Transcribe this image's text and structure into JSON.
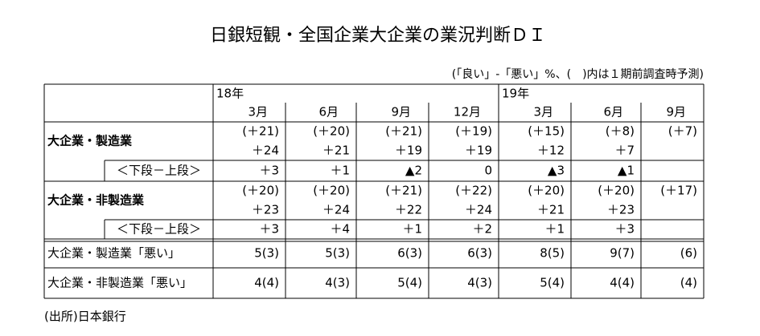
{
  "title": "日銀短観・全国企業大企業の業況判断ＤＩ",
  "note": "(「良い」-「悪い」%、(　)内は１期前調査時予測)",
  "table": {
    "header": {
      "years": [
        "18年",
        "19年"
      ],
      "months": [
        "3月",
        "6月",
        "9月",
        "12月",
        "3月",
        "6月",
        "9月"
      ]
    },
    "rows": [
      {
        "label": "大企業・製造業",
        "forecast": [
          "(＋21)",
          "(＋20)",
          "(＋21)",
          "(＋19)",
          "(＋15)",
          "(＋8)",
          "(＋7)"
        ],
        "actual": [
          "＋24",
          "＋21",
          "＋19",
          "＋19",
          "＋12",
          "＋7"
        ]
      },
      {
        "label": "＜下段－上段＞",
        "values": [
          "＋3",
          "＋1",
          "▲2",
          "0",
          "▲3",
          "▲1"
        ]
      },
      {
        "label": "大企業・非製造業",
        "forecast": [
          "(＋20)",
          "(＋20)",
          "(＋21)",
          "(＋22)",
          "(＋20)",
          "(＋20)",
          "(＋17)"
        ],
        "actual": [
          "＋23",
          "＋24",
          "＋22",
          "＋24",
          "＋21",
          "＋23"
        ]
      },
      {
        "label": "＜下段－上段＞",
        "values": [
          "＋3",
          "＋4",
          "＋1",
          "＋2",
          "＋1",
          "＋3"
        ]
      },
      {
        "label": "大企業・製造業「悪い」",
        "values": [
          "5(3)",
          "5(3)",
          "6(3)",
          "6(3)",
          "8(5)",
          "9(7)",
          "(6)"
        ]
      },
      {
        "label": "大企業・非製造業「悪い」",
        "values": [
          "4(4)",
          "4(3)",
          "5(4)",
          "4(3)",
          "5(4)",
          "4(4)",
          "(4)"
        ]
      }
    ]
  },
  "source": "(出所)日本銀行"
}
